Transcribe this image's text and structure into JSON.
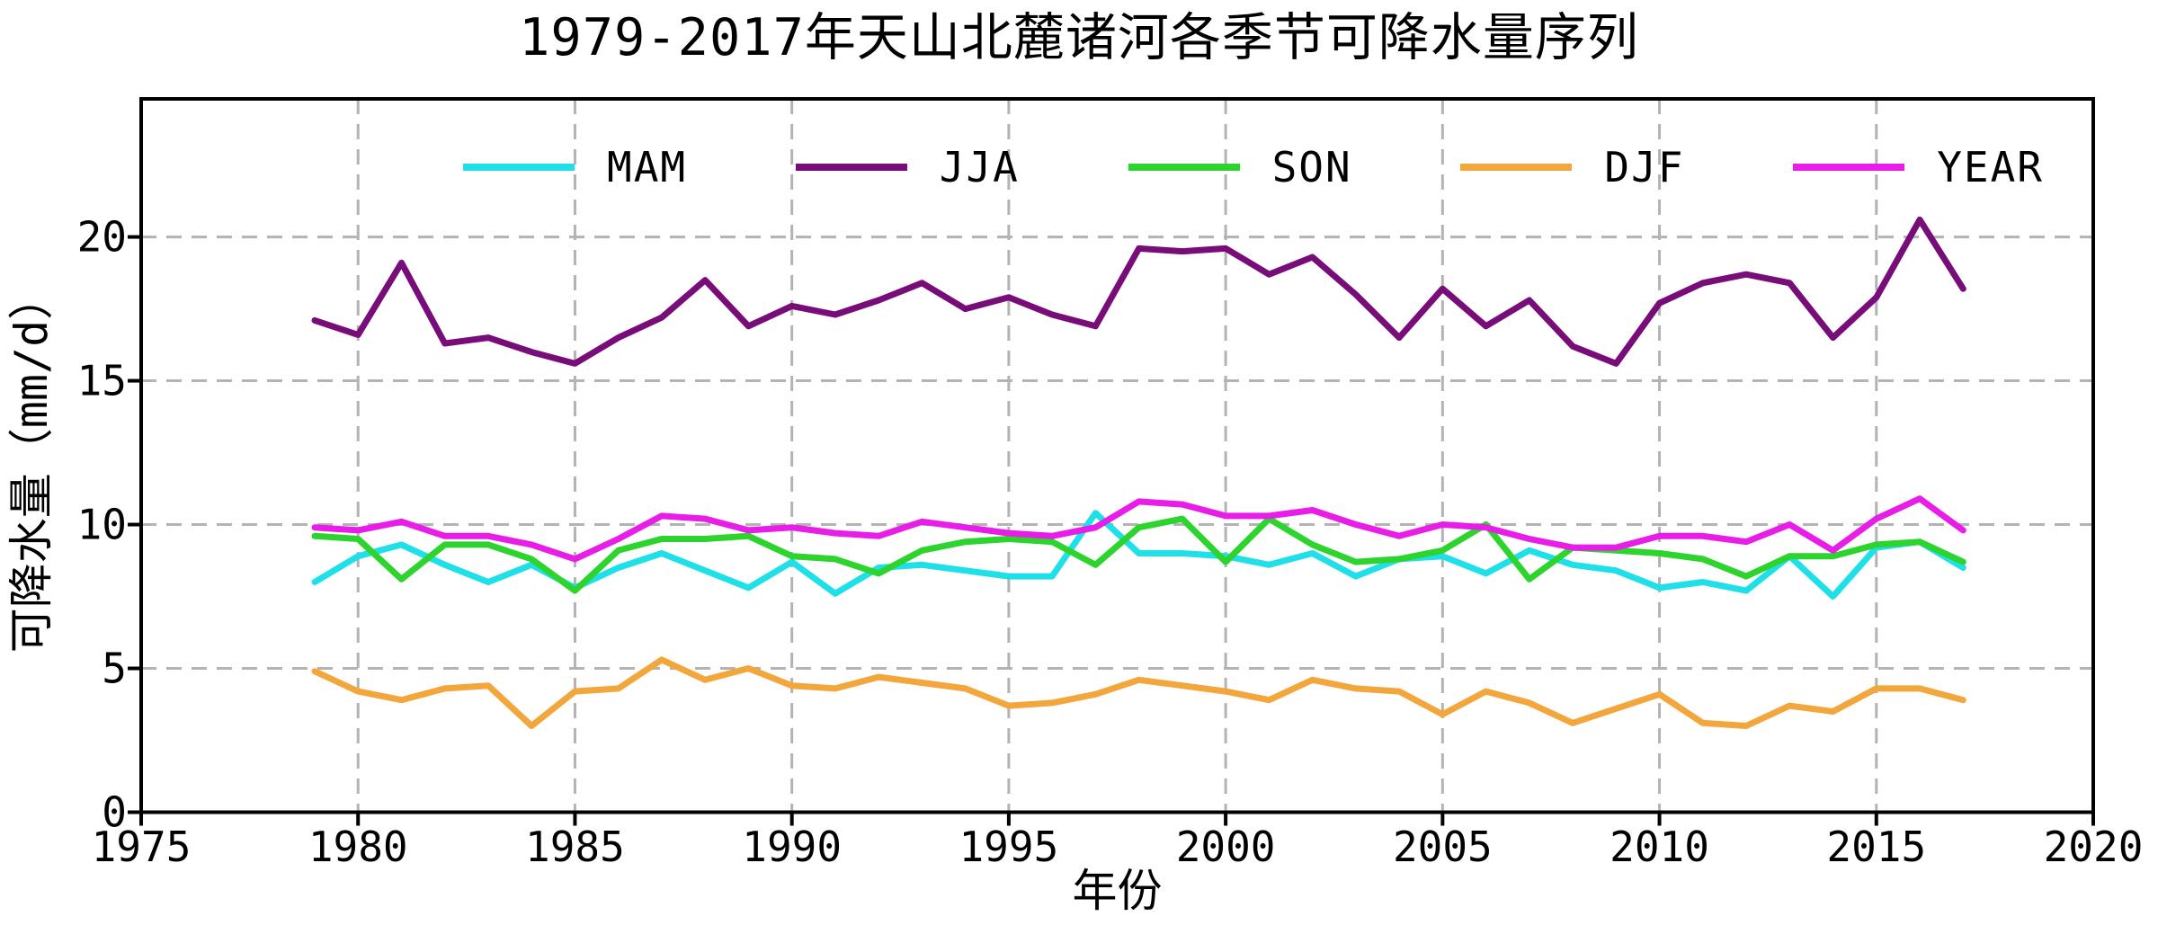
{
  "title": "1979-2017年天山北麓诸河各季节可降水量序列",
  "axes": {
    "x_label": "年份",
    "y_label": "可降水量（mm/d）",
    "x_ticks": [
      "1975",
      "1980",
      "1985",
      "1990",
      "1995",
      "2000",
      "2005",
      "2010",
      "2015",
      "2020"
    ],
    "y_ticks": [
      "0",
      "5",
      "10",
      "15",
      "20"
    ]
  },
  "legend": {
    "items": [
      {
        "label": "MAM",
        "color": "#1fdfe9"
      },
      {
        "label": "JJA",
        "color": "#780d7a"
      },
      {
        "label": "SON",
        "color": "#2ed42e"
      },
      {
        "label": "DJF",
        "color": "#f2a63b"
      },
      {
        "label": "YEAR",
        "color": "#e81de8"
      }
    ]
  },
  "colors": {
    "grid": "#b3b3b3",
    "spine": "#000000",
    "background": "#ffffff"
  },
  "chart_data": {
    "type": "line",
    "title": "1979-2017年天山北麓诸河各季节可降水量序列",
    "xlabel": "年份",
    "ylabel": "可降水量（mm/d）",
    "xlim": [
      1975,
      2020
    ],
    "ylim": [
      0,
      24.8
    ],
    "grid": true,
    "legend_position": "top",
    "x": [
      1979,
      1980,
      1981,
      1982,
      1983,
      1984,
      1985,
      1986,
      1987,
      1988,
      1989,
      1990,
      1991,
      1992,
      1993,
      1994,
      1995,
      1996,
      1997,
      1998,
      1999,
      2000,
      2001,
      2002,
      2003,
      2004,
      2005,
      2006,
      2007,
      2008,
      2009,
      2010,
      2011,
      2012,
      2013,
      2014,
      2015,
      2016,
      2017
    ],
    "series": [
      {
        "name": "MAM",
        "color": "#1fdfe9",
        "values": [
          8.0,
          8.9,
          9.3,
          8.6,
          8.0,
          8.6,
          7.8,
          8.5,
          9.0,
          8.4,
          7.8,
          8.7,
          7.6,
          8.5,
          8.6,
          8.4,
          8.2,
          8.2,
          10.4,
          9.0,
          9.0,
          8.9,
          8.6,
          9.0,
          8.2,
          8.8,
          8.9,
          8.3,
          9.1,
          8.6,
          8.4,
          7.8,
          8.0,
          7.7,
          8.9,
          7.5,
          9.2,
          9.4,
          8.5
        ]
      },
      {
        "name": "JJA",
        "color": "#780d7a",
        "values": [
          17.1,
          16.6,
          19.1,
          16.3,
          16.5,
          16.0,
          15.6,
          16.5,
          17.2,
          18.5,
          16.9,
          17.6,
          17.3,
          17.8,
          18.4,
          17.5,
          17.9,
          17.3,
          16.9,
          19.6,
          19.5,
          19.6,
          18.7,
          19.3,
          18.0,
          16.5,
          18.2,
          16.9,
          17.8,
          16.2,
          15.6,
          17.7,
          18.4,
          18.7,
          18.4,
          16.5,
          17.9,
          20.6,
          18.2
        ]
      },
      {
        "name": "SON",
        "color": "#2ed42e",
        "values": [
          9.6,
          9.5,
          8.1,
          9.3,
          9.3,
          8.8,
          7.7,
          9.1,
          9.5,
          9.5,
          9.6,
          8.9,
          8.8,
          8.3,
          9.1,
          9.4,
          9.5,
          9.4,
          8.6,
          9.9,
          10.2,
          8.7,
          10.2,
          9.3,
          8.7,
          8.8,
          9.1,
          10.0,
          8.1,
          9.2,
          9.1,
          9.0,
          8.8,
          8.2,
          8.9,
          8.9,
          9.3,
          9.4,
          8.7
        ]
      },
      {
        "name": "DJF",
        "color": "#f2a63b",
        "values": [
          4.9,
          4.2,
          3.9,
          4.3,
          4.4,
          3.0,
          4.2,
          4.3,
          5.3,
          4.6,
          5.0,
          4.4,
          4.3,
          4.7,
          4.5,
          4.3,
          3.7,
          3.8,
          4.1,
          4.6,
          4.4,
          4.2,
          3.9,
          4.6,
          4.3,
          4.2,
          3.4,
          4.2,
          3.8,
          3.1,
          3.6,
          4.1,
          3.1,
          3.0,
          3.7,
          3.5,
          4.3,
          4.3,
          3.9
        ]
      },
      {
        "name": "YEAR",
        "color": "#e81de8",
        "values": [
          9.9,
          9.8,
          10.1,
          9.6,
          9.6,
          9.3,
          8.8,
          9.5,
          10.3,
          10.2,
          9.8,
          9.9,
          9.7,
          9.6,
          10.1,
          9.9,
          9.7,
          9.6,
          9.9,
          10.8,
          10.7,
          10.3,
          10.3,
          10.5,
          10.0,
          9.6,
          10.0,
          9.9,
          9.5,
          9.2,
          9.2,
          9.6,
          9.6,
          9.4,
          10.0,
          9.1,
          10.2,
          10.9,
          9.8
        ]
      }
    ]
  }
}
